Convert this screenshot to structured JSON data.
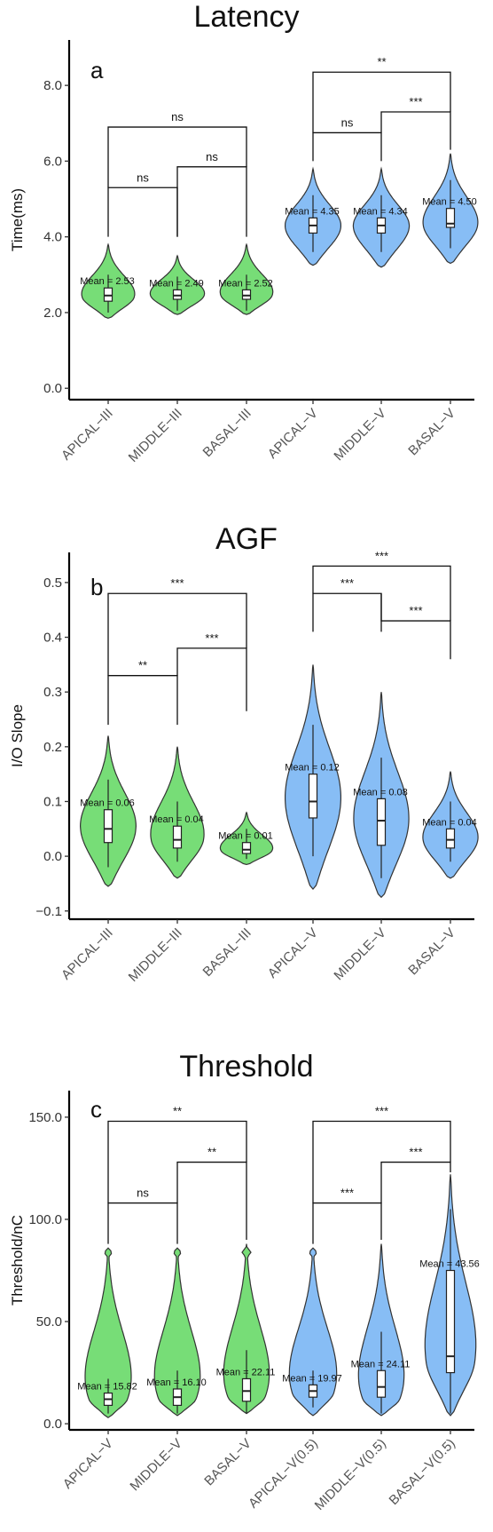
{
  "colors": {
    "green": "#77dd77",
    "blue": "#87bdf5",
    "outline": "#333333",
    "box": "#ffffff"
  },
  "chart_data": [
    {
      "type": "violin",
      "title": "Latency",
      "panel_label": "a",
      "ylabel": "Time(ms)",
      "ylim": [
        -0.3,
        9.2
      ],
      "yticks": [
        0.0,
        2.0,
        4.0,
        6.0,
        8.0
      ],
      "tick_decimals": 1,
      "categories": [
        "APICAL−III",
        "MIDDLE−III",
        "BASAL−III",
        "APICAL−V",
        "MIDDLE−V",
        "BASAL−V"
      ],
      "group_colors": [
        "green",
        "green",
        "green",
        "blue",
        "blue",
        "blue"
      ],
      "means": [
        "2.53",
        "2.49",
        "2.52",
        "4.35",
        "4.34",
        "4.50"
      ],
      "distributions": [
        {
          "min": 1.85,
          "max": 3.8,
          "peak": 2.4,
          "q1": 2.3,
          "median": 2.45,
          "q3": 2.65,
          "whisk_lo": 2.0,
          "whisk_hi": 3.0
        },
        {
          "min": 1.95,
          "max": 3.5,
          "peak": 2.45,
          "q1": 2.35,
          "median": 2.45,
          "q3": 2.6,
          "whisk_lo": 2.05,
          "whisk_hi": 2.95
        },
        {
          "min": 1.95,
          "max": 3.8,
          "peak": 2.45,
          "q1": 2.35,
          "median": 2.45,
          "q3": 2.6,
          "whisk_lo": 2.05,
          "whisk_hi": 3.0
        },
        {
          "min": 3.25,
          "max": 5.8,
          "peak": 4.25,
          "q1": 4.1,
          "median": 4.3,
          "q3": 4.5,
          "whisk_lo": 3.6,
          "whisk_hi": 5.1
        },
        {
          "min": 3.2,
          "max": 5.8,
          "peak": 4.25,
          "q1": 4.1,
          "median": 4.3,
          "q3": 4.5,
          "whisk_lo": 3.6,
          "whisk_hi": 5.1
        },
        {
          "min": 3.3,
          "max": 6.2,
          "peak": 4.3,
          "q1": 4.25,
          "median": 4.35,
          "q3": 4.75,
          "whisk_lo": 3.7,
          "whisk_hi": 5.5
        }
      ],
      "brackets": [
        {
          "from": 0,
          "to": 1,
          "y": 5.3,
          "drop_left": 4.0,
          "drop_right": 4.0,
          "label": "ns"
        },
        {
          "from": 1,
          "to": 2,
          "y": 5.85,
          "drop_left": 4.0,
          "drop_right": 4.0,
          "label": "ns"
        },
        {
          "from": 0,
          "to": 2,
          "y": 6.9,
          "drop_left": 5.3,
          "drop_right": 5.85,
          "label": "ns"
        },
        {
          "from": 3,
          "to": 4,
          "y": 6.75,
          "drop_left": 6.0,
          "drop_right": 6.0,
          "label": "ns"
        },
        {
          "from": 4,
          "to": 5,
          "y": 7.3,
          "drop_left": 6.75,
          "drop_right": 6.3,
          "label": "***"
        },
        {
          "from": 3,
          "to": 5,
          "y": 8.35,
          "drop_left": 6.75,
          "drop_right": 7.3,
          "label": "**"
        }
      ]
    },
    {
      "type": "violin",
      "title": "AGF",
      "panel_label": "b",
      "ylabel": "I/O Slope",
      "ylim": [
        -0.115,
        0.555
      ],
      "yticks": [
        -0.1,
        0.0,
        0.1,
        0.2,
        0.3,
        0.4,
        0.5
      ],
      "tick_decimals": 1,
      "categories": [
        "APICAL−III",
        "MIDDLE−III",
        "BASAL−III",
        "APICAL−V",
        "MIDDLE−V",
        "BASAL−V"
      ],
      "group_colors": [
        "green",
        "green",
        "green",
        "blue",
        "blue",
        "blue"
      ],
      "means": [
        "0.06",
        "0.04",
        "0.01",
        "0.12",
        "0.08",
        "0.04"
      ],
      "distributions": [
        {
          "min": -0.055,
          "max": 0.22,
          "peak": 0.05,
          "q1": 0.025,
          "median": 0.05,
          "q3": 0.085,
          "whisk_lo": -0.02,
          "whisk_hi": 0.14
        },
        {
          "min": -0.04,
          "max": 0.2,
          "peak": 0.03,
          "q1": 0.015,
          "median": 0.03,
          "q3": 0.055,
          "whisk_lo": -0.01,
          "whisk_hi": 0.1
        },
        {
          "min": -0.015,
          "max": 0.08,
          "peak": 0.01,
          "q1": 0.005,
          "median": 0.012,
          "q3": 0.025,
          "whisk_lo": -0.005,
          "whisk_hi": 0.05
        },
        {
          "min": -0.06,
          "max": 0.35,
          "peak": 0.1,
          "q1": 0.07,
          "median": 0.1,
          "q3": 0.15,
          "whisk_lo": 0.0,
          "whisk_hi": 0.24
        },
        {
          "min": -0.075,
          "max": 0.3,
          "peak": 0.06,
          "q1": 0.02,
          "median": 0.065,
          "q3": 0.105,
          "whisk_lo": -0.04,
          "whisk_hi": 0.18
        },
        {
          "min": -0.04,
          "max": 0.155,
          "peak": 0.03,
          "q1": 0.015,
          "median": 0.03,
          "q3": 0.05,
          "whisk_lo": -0.01,
          "whisk_hi": 0.1
        }
      ],
      "brackets": [
        {
          "from": 0,
          "to": 1,
          "y": 0.33,
          "drop_left": 0.24,
          "drop_right": 0.24,
          "label": "**"
        },
        {
          "from": 1,
          "to": 2,
          "y": 0.38,
          "drop_left": 0.33,
          "drop_right": 0.265,
          "label": "***"
        },
        {
          "from": 0,
          "to": 2,
          "y": 0.48,
          "drop_left": 0.33,
          "drop_right": 0.38,
          "label": "***"
        },
        {
          "from": 3,
          "to": 4,
          "y": 0.48,
          "drop_left": 0.41,
          "drop_right": 0.41,
          "label": "***"
        },
        {
          "from": 4,
          "to": 5,
          "y": 0.43,
          "drop_left": 0.48,
          "drop_right": 0.36,
          "label": "***"
        },
        {
          "from": 3,
          "to": 5,
          "y": 0.53,
          "drop_left": 0.48,
          "drop_right": 0.43,
          "label": "***"
        }
      ]
    },
    {
      "type": "violin",
      "title": "Threshold",
      "panel_label": "c",
      "ylabel": "Threshold/nC",
      "ylim": [
        -3,
        163
      ],
      "yticks": [
        0.0,
        50.0,
        100.0,
        150.0
      ],
      "tick_decimals": 1,
      "categories": [
        "APICAL−V",
        "MIDDLE−V",
        "BASAL−V",
        "APICAL−V(0.5)",
        "MIDDLE−V(0.5)",
        "BASAL−V(0.5)"
      ],
      "group_colors": [
        "green",
        "green",
        "green",
        "blue",
        "blue",
        "blue"
      ],
      "means": [
        "15.82",
        "16.10",
        "22.11",
        "19.97",
        "24.11",
        "43.56"
      ],
      "distributions": [
        {
          "min": 3,
          "max": 86,
          "peak": 12,
          "q1": 9,
          "median": 12,
          "q3": 15,
          "whisk_lo": 5,
          "whisk_hi": 22,
          "spike": 84
        },
        {
          "min": 4,
          "max": 86,
          "peak": 12,
          "q1": 9,
          "median": 13,
          "q3": 17,
          "whisk_lo": 5,
          "whisk_hi": 26,
          "spike": 84
        },
        {
          "min": 5,
          "max": 88,
          "peak": 13,
          "q1": 11,
          "median": 16,
          "q3": 22,
          "whisk_lo": 5,
          "whisk_hi": 36,
          "spike": 84
        },
        {
          "min": 4,
          "max": 86,
          "peak": 15,
          "q1": 13,
          "median": 16,
          "q3": 19,
          "whisk_lo": 8,
          "whisk_hi": 26,
          "spike": 84
        },
        {
          "min": 4,
          "max": 88,
          "peak": 12,
          "q1": 13,
          "median": 18,
          "q3": 26,
          "whisk_lo": 5,
          "whisk_hi": 45
        },
        {
          "min": 4,
          "max": 122,
          "peak": 30,
          "q1": 25,
          "median": 33,
          "q3": 75,
          "whisk_lo": 5,
          "whisk_hi": 105
        }
      ],
      "brackets": [
        {
          "from": 0,
          "to": 1,
          "y": 108,
          "drop_left": 88,
          "drop_right": 88,
          "label": "ns"
        },
        {
          "from": 1,
          "to": 2,
          "y": 128,
          "drop_left": 108,
          "drop_right": 90,
          "label": "**"
        },
        {
          "from": 0,
          "to": 2,
          "y": 148,
          "drop_left": 108,
          "drop_right": 128,
          "label": "**"
        },
        {
          "from": 3,
          "to": 4,
          "y": 108,
          "drop_left": 88,
          "drop_right": 90,
          "label": "***"
        },
        {
          "from": 4,
          "to": 5,
          "y": 128,
          "drop_left": 108,
          "drop_right": 123,
          "label": "***"
        },
        {
          "from": 3,
          "to": 5,
          "y": 148,
          "drop_left": 108,
          "drop_right": 128,
          "label": "***"
        }
      ]
    }
  ]
}
